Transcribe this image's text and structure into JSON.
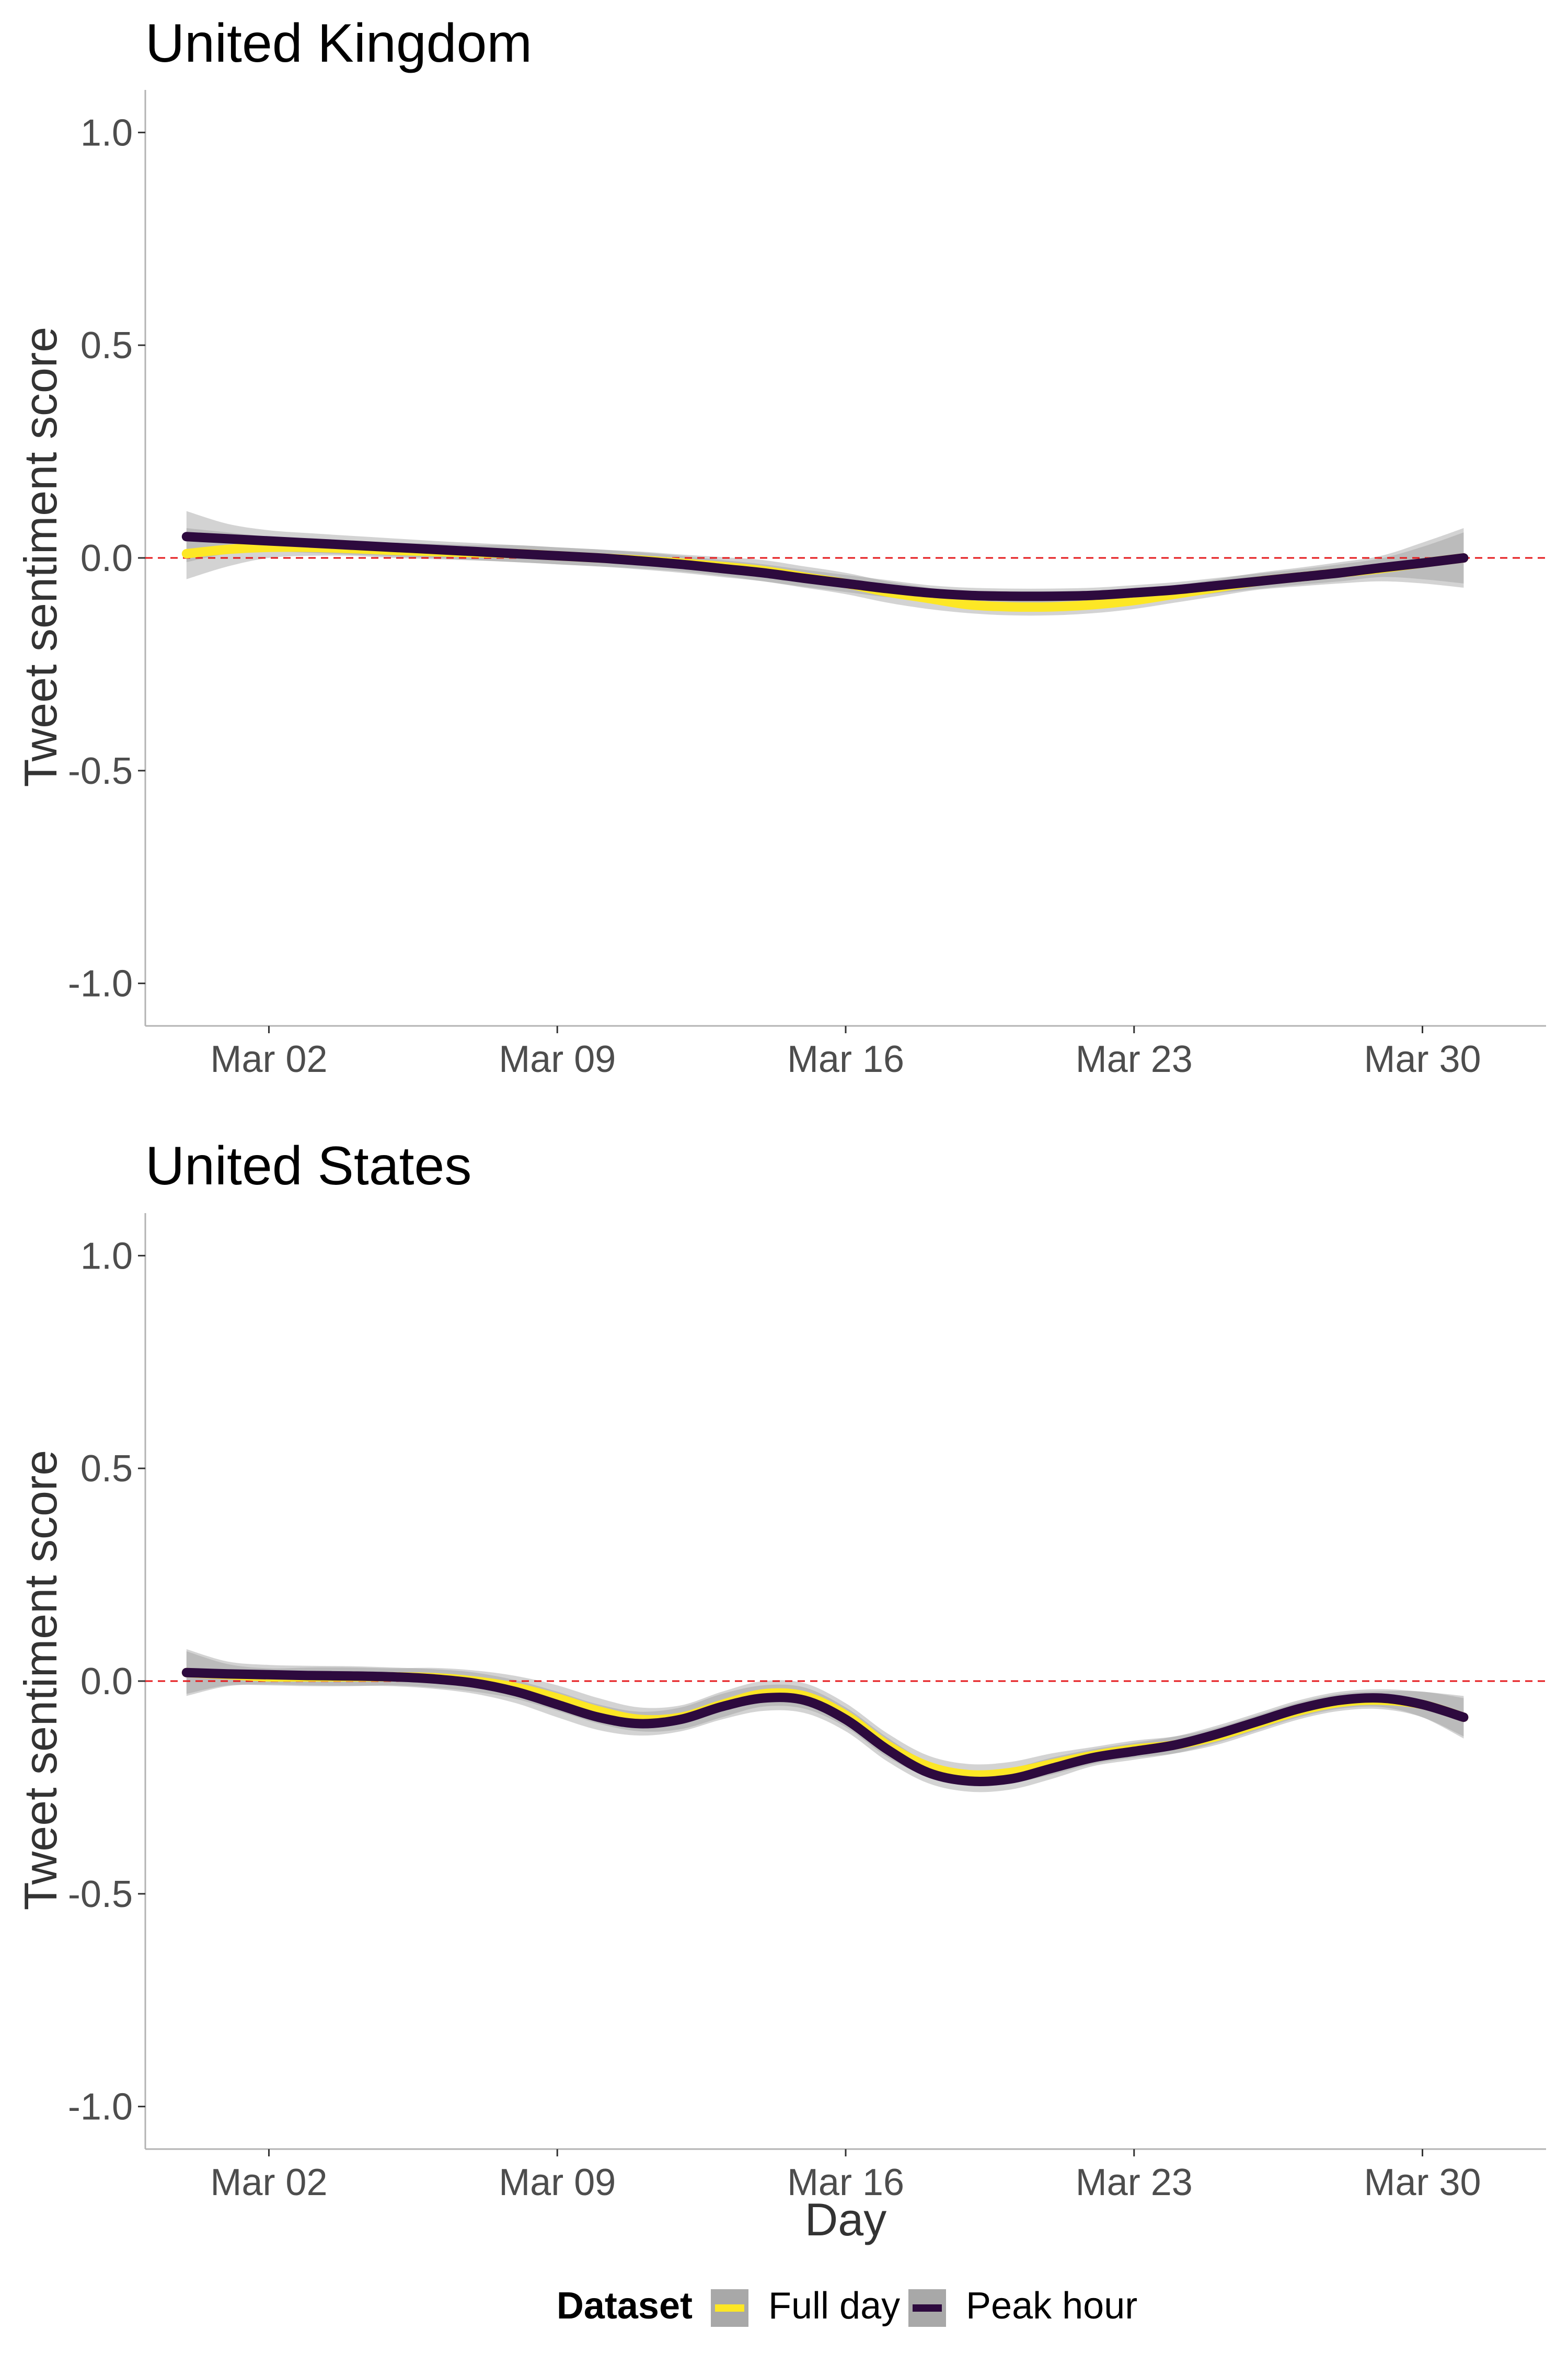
{
  "chart_data": [
    {
      "type": "line",
      "title": "United Kingdom",
      "xlabel": "",
      "ylabel": "Tweet sentiment score",
      "xlim": [
        "2020-02-28",
        "2020-04-02"
      ],
      "ylim": [
        -1.1,
        1.1
      ],
      "x_ticks": [
        "Mar 02",
        "Mar 09",
        "Mar 16",
        "Mar 23",
        "Mar 30"
      ],
      "y_ticks": [
        "1.0",
        "0.5",
        "0.0",
        "-0.5",
        "-1.0"
      ],
      "reference_line": {
        "y": 0,
        "style": "dashed",
        "color": "#e41a1c"
      },
      "grid": false,
      "x": [
        "2020-02-29",
        "2020-03-01",
        "2020-03-02",
        "2020-03-03",
        "2020-03-04",
        "2020-03-05",
        "2020-03-06",
        "2020-03-07",
        "2020-03-08",
        "2020-03-09",
        "2020-03-10",
        "2020-03-11",
        "2020-03-12",
        "2020-03-13",
        "2020-03-14",
        "2020-03-15",
        "2020-03-16",
        "2020-03-17",
        "2020-03-18",
        "2020-03-19",
        "2020-03-20",
        "2020-03-21",
        "2020-03-22",
        "2020-03-23",
        "2020-03-24",
        "2020-03-25",
        "2020-03-26",
        "2020-03-27",
        "2020-03-28",
        "2020-03-29",
        "2020-03-30",
        "2020-03-31"
      ],
      "series": [
        {
          "name": "Full day",
          "color": "#fde725",
          "values": [
            0.01,
            0.02,
            0.025,
            0.025,
            0.022,
            0.018,
            0.015,
            0.012,
            0.01,
            0.005,
            0.0,
            -0.005,
            -0.012,
            -0.02,
            -0.03,
            -0.045,
            -0.06,
            -0.08,
            -0.095,
            -0.11,
            -0.115,
            -0.115,
            -0.11,
            -0.1,
            -0.085,
            -0.07,
            -0.055,
            -0.045,
            -0.035,
            -0.025,
            -0.012,
            0.0
          ],
          "ci_lower": [
            -0.05,
            -0.02,
            0.0,
            0.005,
            0.005,
            0.0,
            -0.003,
            -0.006,
            -0.01,
            -0.015,
            -0.02,
            -0.025,
            -0.032,
            -0.042,
            -0.055,
            -0.07,
            -0.085,
            -0.105,
            -0.12,
            -0.13,
            -0.135,
            -0.135,
            -0.13,
            -0.12,
            -0.105,
            -0.09,
            -0.075,
            -0.067,
            -0.06,
            -0.055,
            -0.06,
            -0.07
          ],
          "ci_upper": [
            0.07,
            0.06,
            0.05,
            0.045,
            0.04,
            0.036,
            0.033,
            0.03,
            0.03,
            0.025,
            0.02,
            0.015,
            0.008,
            0.002,
            -0.005,
            -0.02,
            -0.035,
            -0.055,
            -0.07,
            -0.09,
            -0.095,
            -0.095,
            -0.09,
            -0.08,
            -0.065,
            -0.05,
            -0.035,
            -0.023,
            -0.01,
            0.005,
            0.036,
            0.07
          ]
        },
        {
          "name": "Peak hour",
          "color": "#2d0a3e",
          "values": [
            0.05,
            0.045,
            0.04,
            0.035,
            0.03,
            0.025,
            0.02,
            0.015,
            0.01,
            0.005,
            0.0,
            -0.007,
            -0.015,
            -0.025,
            -0.035,
            -0.048,
            -0.06,
            -0.072,
            -0.082,
            -0.088,
            -0.09,
            -0.09,
            -0.088,
            -0.082,
            -0.075,
            -0.065,
            -0.055,
            -0.045,
            -0.035,
            -0.023,
            -0.012,
            0.0
          ],
          "ci_lower": [
            -0.01,
            0.01,
            0.015,
            0.012,
            0.008,
            0.004,
            0.0,
            -0.005,
            -0.01,
            -0.015,
            -0.02,
            -0.027,
            -0.035,
            -0.045,
            -0.055,
            -0.068,
            -0.08,
            -0.092,
            -0.1,
            -0.106,
            -0.108,
            -0.108,
            -0.106,
            -0.1,
            -0.093,
            -0.083,
            -0.073,
            -0.063,
            -0.055,
            -0.045,
            -0.05,
            -0.06
          ],
          "ci_upper": [
            0.11,
            0.08,
            0.065,
            0.058,
            0.052,
            0.046,
            0.04,
            0.035,
            0.03,
            0.025,
            0.02,
            0.013,
            0.005,
            -0.005,
            -0.015,
            -0.028,
            -0.04,
            -0.052,
            -0.064,
            -0.07,
            -0.072,
            -0.072,
            -0.07,
            -0.064,
            -0.057,
            -0.047,
            -0.037,
            -0.027,
            -0.015,
            -0.001,
            0.026,
            0.06
          ]
        }
      ]
    },
    {
      "type": "line",
      "title": "United States",
      "xlabel": "Day",
      "ylabel": "Tweet sentiment score",
      "xlim": [
        "2020-02-28",
        "2020-04-02"
      ],
      "ylim": [
        -1.1,
        1.1
      ],
      "x_ticks": [
        "Mar 02",
        "Mar 09",
        "Mar 16",
        "Mar 23",
        "Mar 30"
      ],
      "y_ticks": [
        "1.0",
        "0.5",
        "0.0",
        "-0.5",
        "-1.0"
      ],
      "reference_line": {
        "y": 0,
        "style": "dashed",
        "color": "#e41a1c"
      },
      "grid": false,
      "x": [
        "2020-02-29",
        "2020-03-01",
        "2020-03-02",
        "2020-03-03",
        "2020-03-04",
        "2020-03-05",
        "2020-03-06",
        "2020-03-07",
        "2020-03-08",
        "2020-03-09",
        "2020-03-10",
        "2020-03-11",
        "2020-03-12",
        "2020-03-13",
        "2020-03-14",
        "2020-03-15",
        "2020-03-16",
        "2020-03-17",
        "2020-03-18",
        "2020-03-19",
        "2020-03-20",
        "2020-03-21",
        "2020-03-22",
        "2020-03-23",
        "2020-03-24",
        "2020-03-25",
        "2020-03-26",
        "2020-03-27",
        "2020-03-28",
        "2020-03-29",
        "2020-03-30",
        "2020-03-31"
      ],
      "series": [
        {
          "name": "Full day",
          "color": "#fde725",
          "values": [
            0.02,
            0.015,
            0.01,
            0.01,
            0.01,
            0.01,
            0.008,
            0.0,
            -0.015,
            -0.04,
            -0.07,
            -0.09,
            -0.085,
            -0.055,
            -0.03,
            -0.035,
            -0.08,
            -0.15,
            -0.2,
            -0.22,
            -0.215,
            -0.195,
            -0.175,
            -0.16,
            -0.15,
            -0.13,
            -0.1,
            -0.07,
            -0.05,
            -0.045,
            -0.055,
            -0.085
          ],
          "ci_lower": [
            -0.03,
            -0.01,
            -0.01,
            -0.012,
            -0.012,
            -0.01,
            -0.015,
            -0.025,
            -0.042,
            -0.07,
            -0.1,
            -0.118,
            -0.113,
            -0.085,
            -0.06,
            -0.065,
            -0.108,
            -0.178,
            -0.225,
            -0.245,
            -0.24,
            -0.22,
            -0.195,
            -0.18,
            -0.17,
            -0.15,
            -0.12,
            -0.09,
            -0.07,
            -0.066,
            -0.085,
            -0.13
          ],
          "ci_upper": [
            0.07,
            0.04,
            0.03,
            0.032,
            0.032,
            0.03,
            0.031,
            0.025,
            0.012,
            -0.01,
            -0.04,
            -0.062,
            -0.057,
            -0.025,
            0.0,
            -0.005,
            -0.052,
            -0.122,
            -0.175,
            -0.195,
            -0.19,
            -0.17,
            -0.155,
            -0.14,
            -0.13,
            -0.11,
            -0.08,
            -0.05,
            -0.03,
            -0.024,
            -0.025,
            -0.04
          ]
        },
        {
          "name": "Peak hour",
          "color": "#2d0a3e",
          "values": [
            0.02,
            0.017,
            0.015,
            0.013,
            0.012,
            0.01,
            0.005,
            -0.005,
            -0.025,
            -0.055,
            -0.085,
            -0.1,
            -0.09,
            -0.06,
            -0.04,
            -0.045,
            -0.09,
            -0.16,
            -0.215,
            -0.235,
            -0.23,
            -0.205,
            -0.18,
            -0.165,
            -0.15,
            -0.125,
            -0.095,
            -0.065,
            -0.045,
            -0.04,
            -0.055,
            -0.085
          ],
          "ci_lower": [
            -0.035,
            -0.012,
            -0.008,
            -0.01,
            -0.011,
            -0.012,
            -0.018,
            -0.03,
            -0.052,
            -0.085,
            -0.115,
            -0.128,
            -0.118,
            -0.09,
            -0.07,
            -0.075,
            -0.118,
            -0.188,
            -0.24,
            -0.26,
            -0.255,
            -0.23,
            -0.2,
            -0.185,
            -0.17,
            -0.145,
            -0.115,
            -0.085,
            -0.065,
            -0.061,
            -0.085,
            -0.135
          ],
          "ci_upper": [
            0.075,
            0.046,
            0.038,
            0.036,
            0.035,
            0.032,
            0.028,
            0.02,
            0.002,
            -0.025,
            -0.055,
            -0.072,
            -0.062,
            -0.03,
            -0.01,
            -0.015,
            -0.062,
            -0.132,
            -0.19,
            -0.21,
            -0.205,
            -0.18,
            -0.16,
            -0.145,
            -0.13,
            -0.105,
            -0.075,
            -0.045,
            -0.025,
            -0.019,
            -0.025,
            -0.035
          ]
        }
      ]
    }
  ],
  "legend": {
    "title": "Dataset",
    "position": "bottom",
    "items": [
      {
        "label": "Full day",
        "color": "#fde725"
      },
      {
        "label": "Peak hour",
        "color": "#2d0a3e"
      }
    ]
  },
  "colors": {
    "ci_band": "#9e9e9e",
    "reference_line": "#e41a1c",
    "axis_line": "#b3b3b3"
  }
}
